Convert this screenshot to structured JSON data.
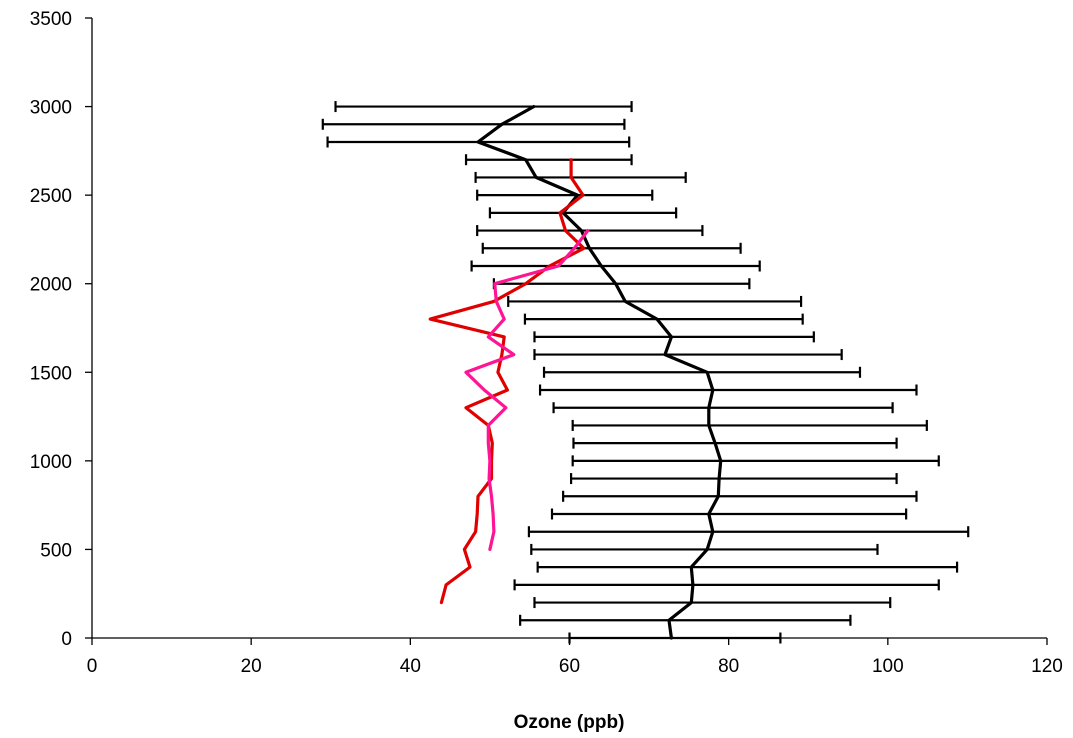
{
  "chart_data": {
    "type": "line",
    "title": "",
    "xlabel": "Ozone (ppb)",
    "ylabel": "",
    "xlim": [
      0,
      120
    ],
    "ylim": [
      0,
      3500
    ],
    "x_ticks": [
      0,
      20,
      40,
      60,
      80,
      100,
      120
    ],
    "y_ticks": [
      0,
      500,
      1000,
      1500,
      2000,
      2500,
      3000,
      3500
    ],
    "grid": false,
    "legend": "none",
    "colors": {
      "black": "#000000",
      "red": "#e00000",
      "magenta": "#ff1493"
    },
    "series": [
      {
        "color": "#000000",
        "has_error_bars": true,
        "points": [
          {
            "y": 0,
            "x": 72.8,
            "lo": 60.0,
            "hi": 86.5
          },
          {
            "y": 100,
            "x": 72.5,
            "lo": 53.8,
            "hi": 95.3
          },
          {
            "y": 200,
            "x": 75.3,
            "lo": 55.6,
            "hi": 100.3
          },
          {
            "y": 300,
            "x": 75.5,
            "lo": 53.1,
            "hi": 106.4
          },
          {
            "y": 400,
            "x": 75.3,
            "lo": 56.0,
            "hi": 108.7
          },
          {
            "y": 500,
            "x": 77.3,
            "lo": 55.2,
            "hi": 98.7
          },
          {
            "y": 600,
            "x": 78.0,
            "lo": 54.9,
            "hi": 110.1
          },
          {
            "y": 700,
            "x": 77.5,
            "lo": 57.8,
            "hi": 102.3
          },
          {
            "y": 800,
            "x": 78.7,
            "lo": 59.2,
            "hi": 103.6
          },
          {
            "y": 900,
            "x": 78.8,
            "lo": 60.2,
            "hi": 101.1
          },
          {
            "y": 1000,
            "x": 79.0,
            "lo": 60.4,
            "hi": 106.4
          },
          {
            "y": 1100,
            "x": 78.3,
            "lo": 60.5,
            "hi": 101.1
          },
          {
            "y": 1200,
            "x": 77.5,
            "lo": 60.4,
            "hi": 104.9
          },
          {
            "y": 1300,
            "x": 77.5,
            "lo": 58.0,
            "hi": 100.6
          },
          {
            "y": 1400,
            "x": 78.0,
            "lo": 56.3,
            "hi": 103.6
          },
          {
            "y": 1500,
            "x": 77.3,
            "lo": 56.8,
            "hi": 96.5
          },
          {
            "y": 1600,
            "x": 72.0,
            "lo": 55.6,
            "hi": 94.2
          },
          {
            "y": 1700,
            "x": 72.8,
            "lo": 55.6,
            "hi": 90.7
          },
          {
            "y": 1800,
            "x": 71.0,
            "lo": 54.4,
            "hi": 89.3
          },
          {
            "y": 1900,
            "x": 67.0,
            "lo": 52.3,
            "hi": 89.1
          },
          {
            "y": 2000,
            "x": 65.8,
            "lo": 50.5,
            "hi": 82.6
          },
          {
            "y": 2100,
            "x": 64.0,
            "lo": 47.7,
            "hi": 83.9
          },
          {
            "y": 2200,
            "x": 62.5,
            "lo": 49.1,
            "hi": 81.5
          },
          {
            "y": 2300,
            "x": 61.5,
            "lo": 48.4,
            "hi": 76.7
          },
          {
            "y": 2400,
            "x": 59.2,
            "lo": 50.0,
            "hi": 73.4
          },
          {
            "y": 2500,
            "x": 61.0,
            "lo": 48.4,
            "hi": 70.4
          },
          {
            "y": 2600,
            "x": 55.8,
            "lo": 48.2,
            "hi": 74.6
          },
          {
            "y": 2700,
            "x": 54.5,
            "lo": 47.0,
            "hi": 67.8
          },
          {
            "y": 2800,
            "x": 48.5,
            "lo": 29.6,
            "hi": 67.5
          },
          {
            "y": 2900,
            "x": 51.5,
            "lo": 29.0,
            "hi": 66.9
          },
          {
            "y": 3000,
            "x": 55.5,
            "lo": 30.6,
            "hi": 67.8
          }
        ]
      },
      {
        "color": "#e00000",
        "has_error_bars": false,
        "points": [
          {
            "y": 200,
            "x": 43.9
          },
          {
            "y": 300,
            "x": 44.5
          },
          {
            "y": 400,
            "x": 47.5
          },
          {
            "y": 500,
            "x": 46.8
          },
          {
            "y": 600,
            "x": 48.2
          },
          {
            "y": 700,
            "x": 48.4
          },
          {
            "y": 800,
            "x": 48.5
          },
          {
            "y": 900,
            "x": 50.2
          },
          {
            "y": 1000,
            "x": 50.2
          },
          {
            "y": 1100,
            "x": 50.3
          },
          {
            "y": 1200,
            "x": 49.8
          },
          {
            "y": 1300,
            "x": 47.0
          },
          {
            "y": 1400,
            "x": 52.2
          },
          {
            "y": 1500,
            "x": 51.0
          },
          {
            "y": 1600,
            "x": 51.5
          },
          {
            "y": 1700,
            "x": 51.8
          },
          {
            "y": 1800,
            "x": 42.5
          },
          {
            "y": 1900,
            "x": 50.5
          },
          {
            "y": 2000,
            "x": 54.5
          },
          {
            "y": 2100,
            "x": 57.5
          },
          {
            "y": 2200,
            "x": 61.8
          },
          {
            "y": 2300,
            "x": 59.5
          },
          {
            "y": 2400,
            "x": 58.8
          },
          {
            "y": 2500,
            "x": 61.7
          },
          {
            "y": 2600,
            "x": 60.2
          },
          {
            "y": 2700,
            "x": 60.2
          }
        ]
      },
      {
        "color": "#ff1493",
        "has_error_bars": false,
        "points": [
          {
            "y": 500,
            "x": 50.0
          },
          {
            "y": 600,
            "x": 50.5
          },
          {
            "y": 700,
            "x": 50.4
          },
          {
            "y": 800,
            "x": 50.2
          },
          {
            "y": 900,
            "x": 49.9
          },
          {
            "y": 1000,
            "x": 50.0
          },
          {
            "y": 1100,
            "x": 49.8
          },
          {
            "y": 1200,
            "x": 49.8
          },
          {
            "y": 1300,
            "x": 52.0
          },
          {
            "y": 1400,
            "x": 49.3
          },
          {
            "y": 1500,
            "x": 47.0
          },
          {
            "y": 1600,
            "x": 53.0
          },
          {
            "y": 1700,
            "x": 49.8
          },
          {
            "y": 1800,
            "x": 51.8
          },
          {
            "y": 1900,
            "x": 50.8
          },
          {
            "y": 2000,
            "x": 50.6
          },
          {
            "y": 2100,
            "x": 58.6
          },
          {
            "y": 2200,
            "x": 60.6
          },
          {
            "y": 2300,
            "x": 62.3
          }
        ]
      }
    ]
  }
}
